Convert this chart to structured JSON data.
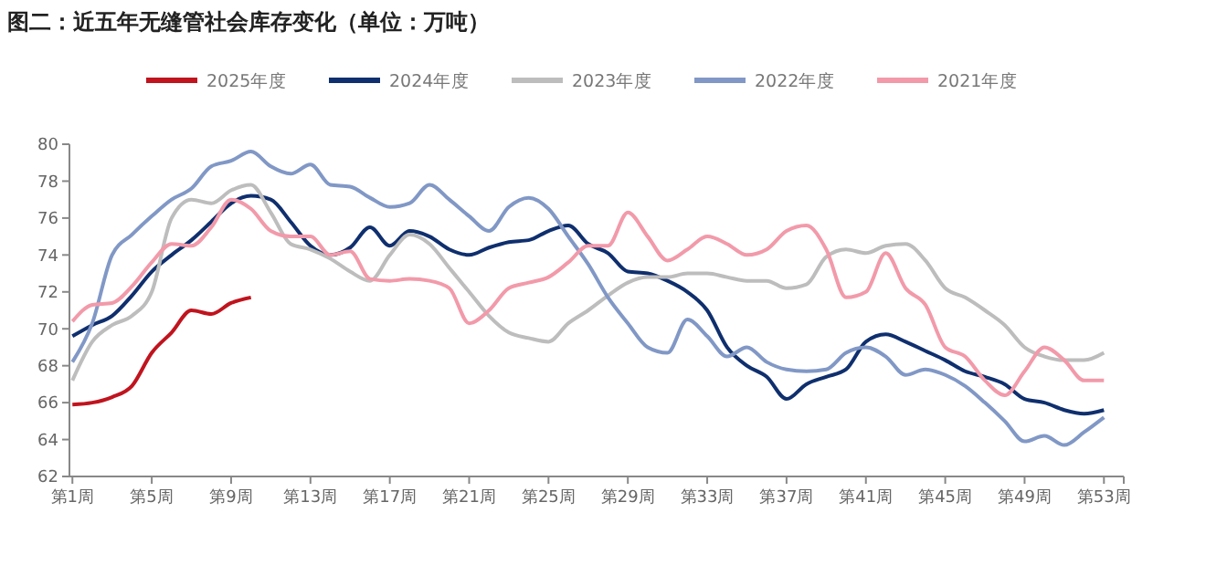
{
  "chart_data": {
    "type": "line",
    "title": "图二：近五年无缝管社会库存变化（单位：万吨）",
    "categories": [
      "第1周",
      null,
      null,
      null,
      "第5周",
      null,
      null,
      null,
      "第9周",
      null,
      null,
      null,
      "第13周",
      null,
      null,
      null,
      "第17周",
      null,
      null,
      null,
      "第21周",
      null,
      null,
      null,
      "第25周",
      null,
      null,
      null,
      "第29周",
      null,
      null,
      null,
      "第33周",
      null,
      null,
      null,
      "第37周",
      null,
      null,
      null,
      "第41周",
      null,
      null,
      null,
      "第45周",
      null,
      null,
      null,
      "第49周",
      null,
      null,
      null,
      "第53周"
    ],
    "series": [
      {
        "name": "2025年度",
        "color": "#c0141e",
        "values": [
          65.9,
          66.0,
          66.3,
          66.9,
          68.7,
          69.8,
          71.0,
          70.8,
          71.4,
          71.7,
          null,
          null,
          null,
          null,
          null,
          null,
          null,
          null,
          null,
          null,
          null,
          null,
          null,
          null,
          null,
          null,
          null,
          null,
          null,
          null,
          null,
          null,
          null,
          null,
          null,
          null,
          null,
          null,
          null,
          null,
          null,
          null,
          null,
          null,
          null,
          null,
          null,
          null,
          null,
          null,
          null,
          null,
          null
        ]
      },
      {
        "name": "2024年度",
        "color": "#0f2f6e",
        "values": [
          69.6,
          70.2,
          70.7,
          71.8,
          73.1,
          74.0,
          74.8,
          75.8,
          76.8,
          77.2,
          77.0,
          75.8,
          74.5,
          74.0,
          74.4,
          75.5,
          74.5,
          75.3,
          75.0,
          74.3,
          74.0,
          74.4,
          74.7,
          74.8,
          75.3,
          75.6,
          74.6,
          74.1,
          73.1,
          73.0,
          72.6,
          72.0,
          71.0,
          69.0,
          68.0,
          67.4,
          66.2,
          67.0,
          67.4,
          67.8,
          69.3,
          69.7,
          69.3,
          68.8,
          68.3,
          67.7,
          67.4,
          67.0,
          66.2,
          66.0,
          65.6,
          65.4,
          65.6
        ]
      },
      {
        "name": "2023年度",
        "color": "#bdbdbd",
        "values": [
          67.2,
          69.3,
          70.2,
          70.7,
          72.0,
          76.0,
          77.0,
          76.8,
          77.5,
          77.8,
          76.3,
          74.6,
          74.3,
          73.8,
          73.1,
          72.6,
          74.0,
          75.1,
          74.6,
          73.3,
          72.0,
          70.7,
          69.8,
          69.5,
          69.3,
          70.3,
          71.0,
          71.8,
          72.5,
          72.8,
          72.8,
          73.0,
          73.0,
          72.8,
          72.6,
          72.6,
          72.2,
          72.4,
          73.9,
          74.3,
          74.1,
          74.5,
          74.6,
          73.7,
          72.2,
          71.7,
          71.0,
          70.2,
          69.0,
          68.5,
          68.3,
          68.3,
          68.7
        ]
      },
      {
        "name": "2022年度",
        "color": "#8198c6",
        "values": [
          68.2,
          70.3,
          74.0,
          75.1,
          76.1,
          77.0,
          77.6,
          78.8,
          79.1,
          79.6,
          78.8,
          78.4,
          78.9,
          77.8,
          77.7,
          77.1,
          76.6,
          76.8,
          77.8,
          77.0,
          76.1,
          75.3,
          76.6,
          77.1,
          76.5,
          75.0,
          73.5,
          71.7,
          70.3,
          69.0,
          68.7,
          70.5,
          69.6,
          68.5,
          69.0,
          68.2,
          67.8,
          67.7,
          67.8,
          68.7,
          69.0,
          68.5,
          67.5,
          67.8,
          67.5,
          66.9,
          66.0,
          65.0,
          63.9,
          64.2,
          63.7,
          64.4,
          65.2
        ]
      },
      {
        "name": "2021年度",
        "color": "#f29aaa",
        "values": [
          70.4,
          71.3,
          71.4,
          72.3,
          73.6,
          74.6,
          74.5,
          75.5,
          77.0,
          76.5,
          75.3,
          75.0,
          75.0,
          74.0,
          74.2,
          72.7,
          72.6,
          72.7,
          72.6,
          72.2,
          70.3,
          71.0,
          72.2,
          72.5,
          72.8,
          73.6,
          74.5,
          74.5,
          76.3,
          75.0,
          73.7,
          74.3,
          75.0,
          74.6,
          74.0,
          74.3,
          75.3,
          75.6,
          74.3,
          71.7,
          72.0,
          74.1,
          72.2,
          71.3,
          69.0,
          68.5,
          67.2,
          66.4,
          67.7,
          69.0,
          68.3,
          67.2,
          67.2
        ]
      }
    ],
    "ylim": [
      62,
      80
    ],
    "yticks": [
      62,
      64,
      66,
      68,
      70,
      72,
      74,
      76,
      78,
      80
    ],
    "grid": false,
    "legend": "top",
    "marker": "none",
    "line_style": "solid"
  }
}
